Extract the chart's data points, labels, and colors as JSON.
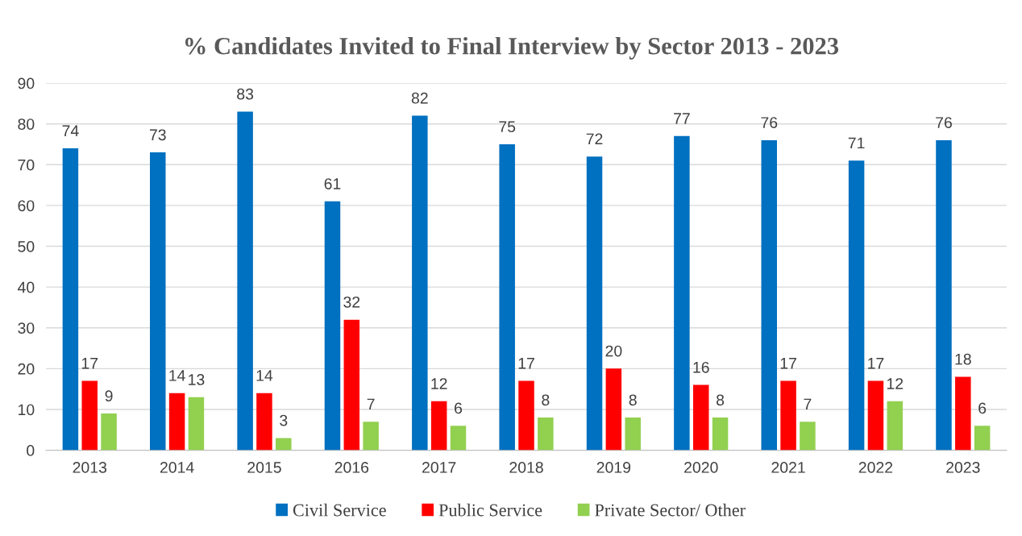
{
  "chart_data": {
    "type": "bar",
    "title": "% Candidates Invited to Final Interview by Sector 2013 - 2023",
    "categories": [
      "2013",
      "2014",
      "2015",
      "2016",
      "2017",
      "2018",
      "2019",
      "2020",
      "2021",
      "2022",
      "2023"
    ],
    "series": [
      {
        "name": "Civil Service",
        "color": "#0070c0",
        "values": [
          74,
          73,
          83,
          61,
          82,
          75,
          72,
          77,
          76,
          71,
          76
        ]
      },
      {
        "name": "Public Service",
        "color": "#ff0000",
        "values": [
          17,
          14,
          14,
          32,
          12,
          17,
          20,
          16,
          17,
          17,
          18
        ]
      },
      {
        "name": "Private Sector/ Other",
        "color": "#92d050",
        "values": [
          9,
          13,
          3,
          7,
          6,
          8,
          8,
          8,
          7,
          12,
          6
        ]
      }
    ],
    "ylim": [
      0,
      90
    ],
    "yticks": [
      0,
      10,
      20,
      30,
      40,
      50,
      60,
      70,
      80,
      90
    ],
    "grid": "y",
    "legend": "bottom",
    "data_labels": true
  }
}
